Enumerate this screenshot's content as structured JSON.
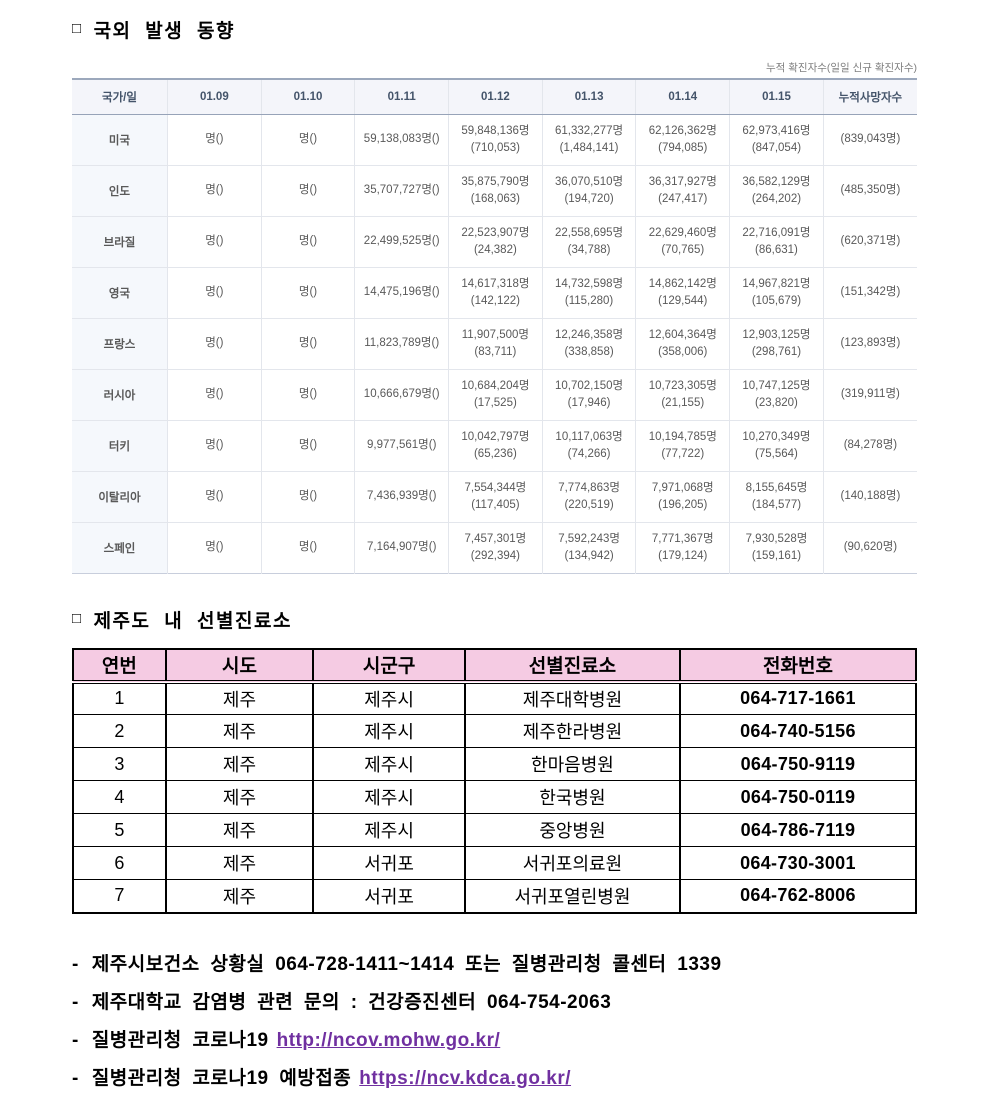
{
  "header": {
    "section1_bullet": "□",
    "section1_title": "국외 발생 동향",
    "table_caption": "누적 확진자수(일일 신규 확진자수)"
  },
  "overseas_table": {
    "headers": [
      "국가/일",
      "01.09",
      "01.10",
      "01.11",
      "01.12",
      "01.13",
      "01.14",
      "01.15",
      "누적사망자수"
    ],
    "rows": [
      {
        "country": "미국",
        "cells": [
          [
            "명()"
          ],
          [
            "명()"
          ],
          [
            "59,138,083명()"
          ],
          [
            "59,848,136명",
            "(710,053)"
          ],
          [
            "61,332,277명",
            "(1,484,141)"
          ],
          [
            "62,126,362명",
            "(794,085)"
          ],
          [
            "62,973,416명",
            "(847,054)"
          ],
          [
            "(839,043명)"
          ]
        ]
      },
      {
        "country": "인도",
        "cells": [
          [
            "명()"
          ],
          [
            "명()"
          ],
          [
            "35,707,727명()"
          ],
          [
            "35,875,790명",
            "(168,063)"
          ],
          [
            "36,070,510명",
            "(194,720)"
          ],
          [
            "36,317,927명",
            "(247,417)"
          ],
          [
            "36,582,129명",
            "(264,202)"
          ],
          [
            "(485,350명)"
          ]
        ]
      },
      {
        "country": "브라질",
        "cells": [
          [
            "명()"
          ],
          [
            "명()"
          ],
          [
            "22,499,525명()"
          ],
          [
            "22,523,907명",
            "(24,382)"
          ],
          [
            "22,558,695명",
            "(34,788)"
          ],
          [
            "22,629,460명",
            "(70,765)"
          ],
          [
            "22,716,091명",
            "(86,631)"
          ],
          [
            "(620,371명)"
          ]
        ]
      },
      {
        "country": "영국",
        "cells": [
          [
            "명()"
          ],
          [
            "명()"
          ],
          [
            "14,475,196명()"
          ],
          [
            "14,617,318명",
            "(142,122)"
          ],
          [
            "14,732,598명",
            "(115,280)"
          ],
          [
            "14,862,142명",
            "(129,544)"
          ],
          [
            "14,967,821명",
            "(105,679)"
          ],
          [
            "(151,342명)"
          ]
        ]
      },
      {
        "country": "프랑스",
        "cells": [
          [
            "명()"
          ],
          [
            "명()"
          ],
          [
            "11,823,789명()"
          ],
          [
            "11,907,500명",
            "(83,711)"
          ],
          [
            "12,246,358명",
            "(338,858)"
          ],
          [
            "12,604,364명",
            "(358,006)"
          ],
          [
            "12,903,125명",
            "(298,761)"
          ],
          [
            "(123,893명)"
          ]
        ]
      },
      {
        "country": "러시아",
        "cells": [
          [
            "명()"
          ],
          [
            "명()"
          ],
          [
            "10,666,679명()"
          ],
          [
            "10,684,204명",
            "(17,525)"
          ],
          [
            "10,702,150명",
            "(17,946)"
          ],
          [
            "10,723,305명",
            "(21,155)"
          ],
          [
            "10,747,125명",
            "(23,820)"
          ],
          [
            "(319,911명)"
          ]
        ]
      },
      {
        "country": "터키",
        "cells": [
          [
            "명()"
          ],
          [
            "명()"
          ],
          [
            "9,977,561명()"
          ],
          [
            "10,042,797명",
            "(65,236)"
          ],
          [
            "10,117,063명",
            "(74,266)"
          ],
          [
            "10,194,785명",
            "(77,722)"
          ],
          [
            "10,270,349명",
            "(75,564)"
          ],
          [
            "(84,278명)"
          ]
        ]
      },
      {
        "country": "이탈리아",
        "cells": [
          [
            "명()"
          ],
          [
            "명()"
          ],
          [
            "7,436,939명()"
          ],
          [
            "7,554,344명",
            "(117,405)"
          ],
          [
            "7,774,863명",
            "(220,519)"
          ],
          [
            "7,971,068명",
            "(196,205)"
          ],
          [
            "8,155,645명",
            "(184,577)"
          ],
          [
            "(140,188명)"
          ]
        ]
      },
      {
        "country": "스페인",
        "cells": [
          [
            "명()"
          ],
          [
            "명()"
          ],
          [
            "7,164,907명()"
          ],
          [
            "7,457,301명",
            "(292,394)"
          ],
          [
            "7,592,243명",
            "(134,942)"
          ],
          [
            "7,771,367명",
            "(179,124)"
          ],
          [
            "7,930,528명",
            "(159,161)"
          ],
          [
            "(90,620명)"
          ]
        ]
      }
    ]
  },
  "clinic_section": {
    "bullet": "□",
    "title": "제주도 내 선별진료소",
    "headers": [
      "연번",
      "시도",
      "시군구",
      "선별진료소",
      "전화번호"
    ],
    "rows": [
      [
        "1",
        "제주",
        "제주시",
        "제주대학병원",
        "064-717-1661"
      ],
      [
        "2",
        "제주",
        "제주시",
        "제주한라병원",
        "064-740-5156"
      ],
      [
        "3",
        "제주",
        "제주시",
        "한마음병원",
        "064-750-9119"
      ],
      [
        "4",
        "제주",
        "제주시",
        "한국병원",
        "064-750-0119"
      ],
      [
        "5",
        "제주",
        "제주시",
        "중앙병원",
        "064-786-7119"
      ],
      [
        "6",
        "제주",
        "서귀포",
        "서귀포의료원",
        "064-730-3001"
      ],
      [
        "7",
        "제주",
        "서귀포",
        "서귀포열린병원",
        "064-762-8006"
      ]
    ]
  },
  "footer": {
    "notes": [
      {
        "prefix": "-",
        "text": "제주시보건소 상황실 064-728-1411~1414 또는 질병관리청 콜센터 1339",
        "link": ""
      },
      {
        "prefix": "-",
        "text": "제주대학교 감염병 관련 문의 : 건강증진센터 064-754-2063",
        "link": ""
      },
      {
        "prefix": "-",
        "text": "질병관리청 코로나19",
        "link": "http://ncov.mohw.go.kr/"
      },
      {
        "prefix": "-",
        "text": "질병관리청 코로나19 예방접종",
        "link": "https://ncv.kdca.go.kr/"
      }
    ]
  },
  "colors": {
    "table1_header_bg": "#F4F5FA",
    "table1_header_text": "#44546A",
    "table2_header_bg": "#F5CBE3",
    "link": "#7030A0"
  }
}
